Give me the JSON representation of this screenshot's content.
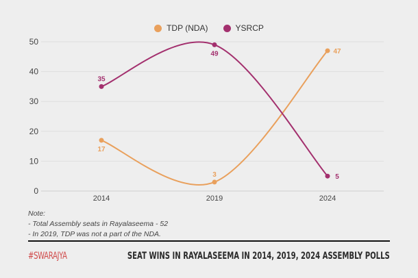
{
  "chart_data": {
    "type": "line",
    "categories": [
      "2014",
      "2019",
      "2024"
    ],
    "series": [
      {
        "name": "TDP (NDA)",
        "values": [
          17,
          3,
          47
        ],
        "color": "#e9a05c"
      },
      {
        "name": "YSRCP",
        "values": [
          35,
          49,
          5
        ],
        "color": "#a3306e"
      }
    ],
    "ylim": [
      0,
      50
    ],
    "yticks": [
      0,
      10,
      20,
      30,
      40,
      50
    ],
    "grid": true,
    "legend": "top-center",
    "smooth": true
  },
  "notes": {
    "heading": "Note:",
    "lines": [
      "- Total Assembly seats in Rayalaseema - 52",
      "- In 2019, TDP was not a part of the NDA."
    ]
  },
  "footer": {
    "brand": "#SWARAJYA",
    "title": "SEAT WINS IN RAYALASEEMA IN 2014, 2019, 2024 ASSEMBLY POLLS"
  }
}
